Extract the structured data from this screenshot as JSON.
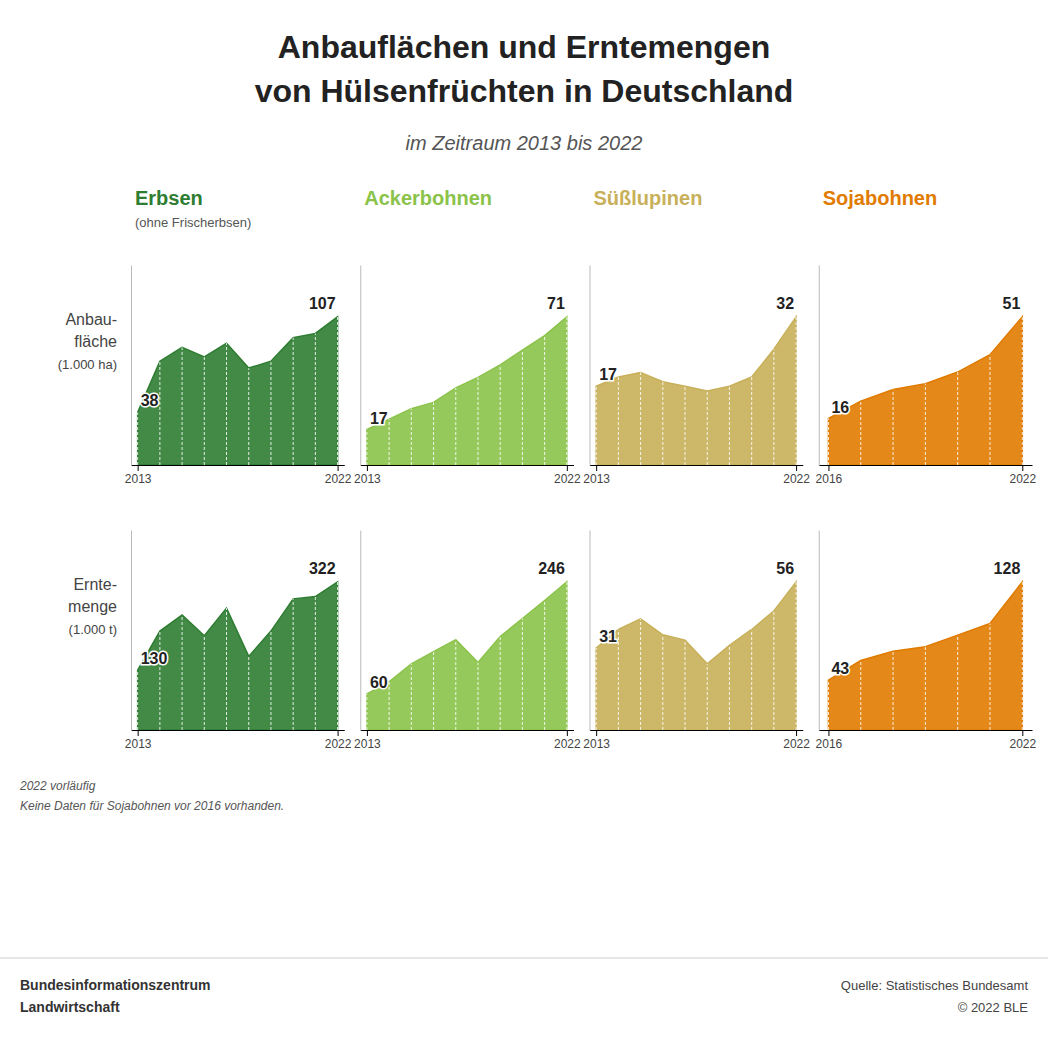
{
  "title": [
    "Anbauflächen und Erntemengen",
    "von Hülsenfrüchten in Deutschland"
  ],
  "subtitle": "im Zeitraum 2013 bis 2022",
  "annotations": [
    "2022 vorläufig",
    "Keine Daten für Sojabohnen vor 2016 vorhanden.",
    "Bundesinformationszentrum",
    "Landwirtschaft",
    "Quelle: Statistisches Bundesamt",
    "© 2022 BLE"
  ],
  "chart_data": [
    {
      "type": "area",
      "title": "Erbsen",
      "subtitle": "(ohne Frischerbsen)",
      "ylabel": [
        "Anbau-",
        "fläche",
        "(1.000 ha)"
      ],
      "x": [
        2013,
        2014,
        2015,
        2016,
        2017,
        2018,
        2019,
        2020,
        2021,
        2022
      ],
      "values": [
        38,
        75,
        85,
        78,
        88,
        70,
        75,
        92,
        95,
        107
      ],
      "color": "#2e7d32",
      "xlim": [
        2012.7,
        2022.3
      ],
      "xticks": [
        2013,
        2022
      ],
      "ylim": [
        0,
        144.45
      ],
      "tick_labels": "x",
      "grid": false,
      "annotations": [
        "38",
        "107"
      ]
    },
    {
      "type": "area",
      "title": "Ackerbohnen",
      "x": [
        2013,
        2014,
        2015,
        2016,
        2017,
        2018,
        2019,
        2020,
        2021,
        2022
      ],
      "values": [
        17,
        22,
        27,
        30,
        37,
        42,
        48,
        55,
        62,
        71
      ],
      "color": "#8bc34a",
      "xlim": [
        2012.7,
        2022.3
      ],
      "xticks": [
        2013,
        2022
      ],
      "ylim": [
        0,
        95.85
      ],
      "tick_labels": "x",
      "grid": false,
      "annotations": [
        "17",
        "71"
      ]
    },
    {
      "type": "area",
      "title": "Süßlupinen",
      "x": [
        2013,
        2014,
        2015,
        2016,
        2017,
        2018,
        2019,
        2020,
        2021,
        2022
      ],
      "values": [
        17,
        19,
        20,
        18,
        17,
        16,
        17,
        19,
        25,
        32
      ],
      "color": "#c8b05a",
      "xlim": [
        2012.7,
        2022.3
      ],
      "xticks": [
        2013,
        2022
      ],
      "ylim": [
        0,
        43.2
      ],
      "tick_labels": "x",
      "grid": false,
      "annotations": [
        "17",
        "32"
      ]
    },
    {
      "type": "area",
      "title": "Sojabohnen",
      "x": [
        2016,
        2017,
        2018,
        2019,
        2020,
        2021,
        2022
      ],
      "values": [
        16,
        22,
        26,
        28,
        32,
        38,
        51
      ],
      "color": "#e07b00",
      "xlim": [
        2015.7,
        2022.3
      ],
      "xticks": [
        2016,
        2022
      ],
      "ylim": [
        0,
        68.85
      ],
      "tick_labels": "x",
      "grid": false,
      "annotations": [
        "16",
        "51"
      ]
    },
    {
      "type": "area",
      "ylabel": [
        "Ernte-",
        "menge",
        "(1.000 t)"
      ],
      "x": [
        2013,
        2014,
        2015,
        2016,
        2017,
        2018,
        2019,
        2020,
        2021,
        2022
      ],
      "values": [
        130,
        215,
        250,
        205,
        265,
        160,
        215,
        285,
        290,
        322
      ],
      "color": "#2e7d32",
      "xlim": [
        2012.7,
        2022.3
      ],
      "xticks": [
        2013,
        2022
      ],
      "ylim": [
        0,
        434.7
      ],
      "tick_labels": "x",
      "grid": false,
      "annotations": [
        "130",
        "322"
      ]
    },
    {
      "type": "area",
      "x": [
        2013,
        2014,
        2015,
        2016,
        2017,
        2018,
        2019,
        2020,
        2021,
        2022
      ],
      "values": [
        60,
        80,
        110,
        130,
        150,
        112,
        155,
        185,
        215,
        246
      ],
      "color": "#8bc34a",
      "xlim": [
        2012.7,
        2022.3
      ],
      "xticks": [
        2013,
        2022
      ],
      "ylim": [
        0,
        332.1
      ],
      "tick_labels": "x",
      "grid": false,
      "annotations": [
        "60",
        "246"
      ]
    },
    {
      "type": "area",
      "x": [
        2013,
        2014,
        2015,
        2016,
        2017,
        2018,
        2019,
        2020,
        2021,
        2022
      ],
      "values": [
        31,
        38,
        42,
        36,
        34,
        25,
        32,
        38,
        45,
        56
      ],
      "color": "#c8b05a",
      "xlim": [
        2012.7,
        2022.3
      ],
      "xticks": [
        2013,
        2022
      ],
      "ylim": [
        0,
        75.6
      ],
      "tick_labels": "x",
      "grid": false,
      "annotations": [
        "31",
        "56"
      ]
    },
    {
      "type": "area",
      "x": [
        2016,
        2017,
        2018,
        2019,
        2020,
        2021,
        2022
      ],
      "values": [
        43,
        60,
        68,
        72,
        82,
        92,
        128
      ],
      "color": "#e07b00",
      "xlim": [
        2015.7,
        2022.3
      ],
      "xticks": [
        2016,
        2022
      ],
      "ylim": [
        0,
        172.8
      ],
      "tick_labels": "x",
      "grid": false,
      "annotations": [
        "43",
        "128"
      ]
    }
  ]
}
